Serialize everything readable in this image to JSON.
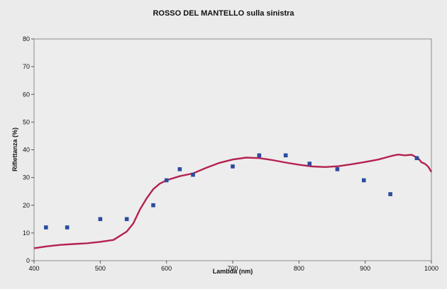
{
  "chart_data": {
    "type": "line",
    "title": "ROSSO DEL MANTELLO sulla sinistra",
    "xlabel": "Lambda (nm)",
    "ylabel": "Riflettanza (%)",
    "xlim": [
      400,
      1000
    ],
    "ylim": [
      0,
      80
    ],
    "x_ticks": [
      400,
      500,
      600,
      700,
      800,
      900,
      1000
    ],
    "y_ticks": [
      0,
      10,
      20,
      30,
      40,
      50,
      60,
      70,
      80
    ],
    "grid": false,
    "legend": "none",
    "series": [
      {
        "kind": "line",
        "color": "#b5224f",
        "points": [
          [
            400,
            4.5
          ],
          [
            420,
            5.2
          ],
          [
            440,
            5.7
          ],
          [
            460,
            6.0
          ],
          [
            480,
            6.3
          ],
          [
            500,
            6.8
          ],
          [
            520,
            7.5
          ],
          [
            540,
            10.5
          ],
          [
            550,
            13.5
          ],
          [
            560,
            18.5
          ],
          [
            570,
            22.5
          ],
          [
            580,
            25.8
          ],
          [
            590,
            27.8
          ],
          [
            600,
            29.0
          ],
          [
            620,
            30.5
          ],
          [
            640,
            31.5
          ],
          [
            660,
            33.5
          ],
          [
            680,
            35.3
          ],
          [
            700,
            36.5
          ],
          [
            720,
            37.2
          ],
          [
            740,
            37.0
          ],
          [
            760,
            36.3
          ],
          [
            780,
            35.4
          ],
          [
            800,
            34.6
          ],
          [
            820,
            34.0
          ],
          [
            840,
            33.8
          ],
          [
            860,
            34.1
          ],
          [
            880,
            34.8
          ],
          [
            900,
            35.6
          ],
          [
            920,
            36.5
          ],
          [
            940,
            37.8
          ],
          [
            950,
            38.3
          ],
          [
            960,
            38.0
          ],
          [
            970,
            38.2
          ],
          [
            980,
            37.0
          ],
          [
            985,
            35.5
          ],
          [
            990,
            35.0
          ],
          [
            995,
            34.0
          ],
          [
            1000,
            32.0
          ]
        ]
      },
      {
        "kind": "scatter",
        "color": "#2b4ba0",
        "points": [
          [
            418,
            12
          ],
          [
            450,
            12
          ],
          [
            500,
            15
          ],
          [
            540,
            15
          ],
          [
            580,
            20
          ],
          [
            600,
            29
          ],
          [
            620,
            33
          ],
          [
            640,
            31
          ],
          [
            700,
            34
          ],
          [
            740,
            38
          ],
          [
            780,
            38
          ],
          [
            816,
            35
          ],
          [
            858,
            33
          ],
          [
            898,
            29
          ],
          [
            938,
            24
          ],
          [
            978,
            37
          ]
        ]
      }
    ]
  }
}
